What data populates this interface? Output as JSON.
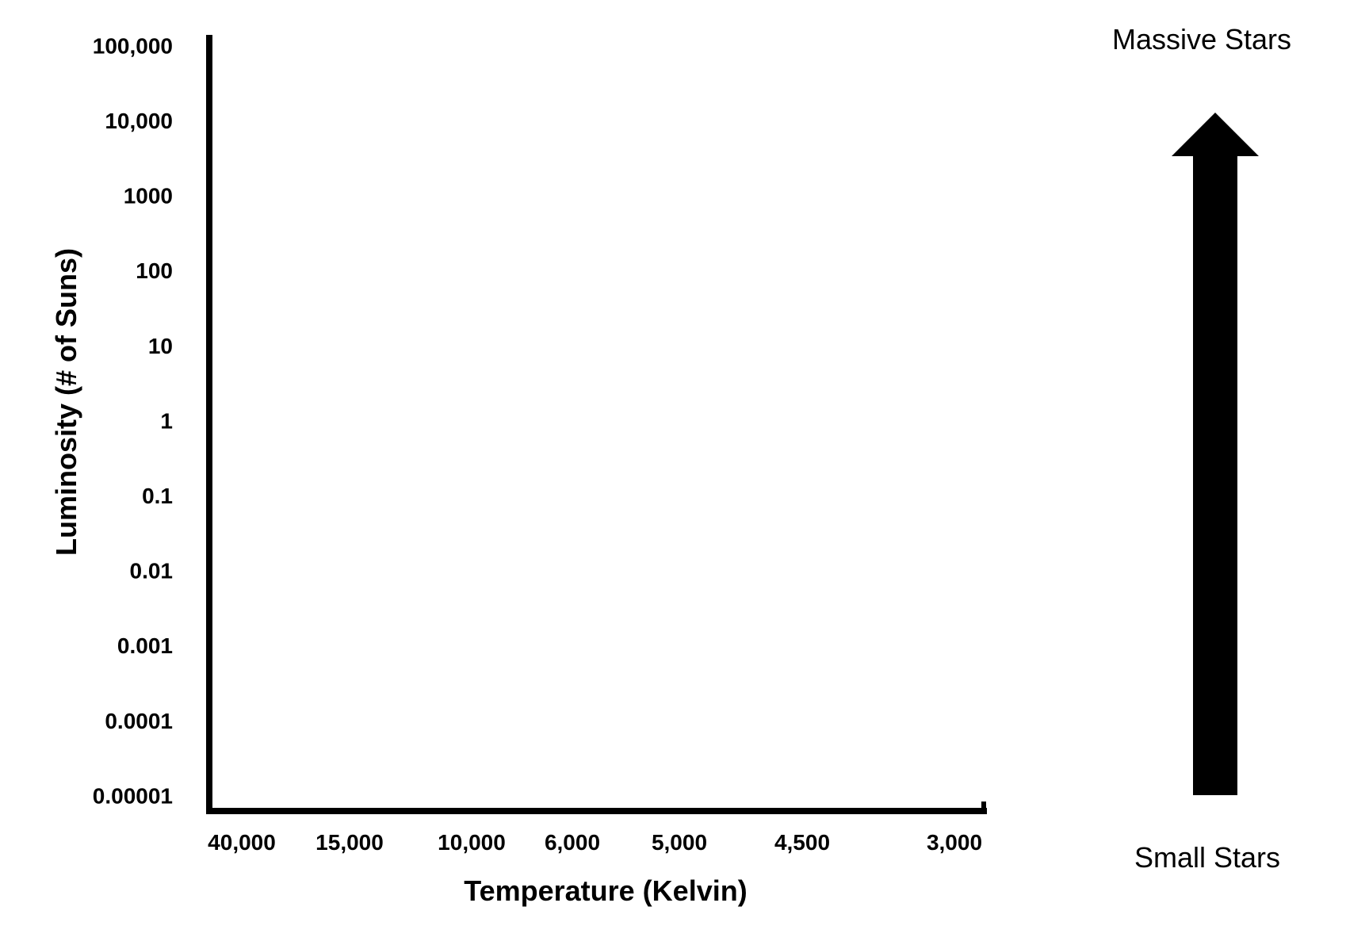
{
  "chart_data": {
    "type": "scatter",
    "title": "",
    "xlabel": "Temperature (Kelvin)",
    "ylabel": "Luminosity (# of Suns)",
    "x_ticks": [
      "40,000",
      "15,000",
      "10,000",
      "6,000",
      "5,000",
      "4,500",
      "3,000"
    ],
    "y_ticks": [
      "100,000",
      "10,000",
      "1000",
      "100",
      "10",
      "1",
      "0.1",
      "0.01",
      "0.001",
      "0.0001",
      "0.00001"
    ],
    "x_order": "descending",
    "y_scale": "log",
    "ylim": [
      1e-05,
      100000
    ],
    "series": [],
    "grid": false,
    "legend": "none"
  },
  "annotations": {
    "top_label": "Massive Stars",
    "bottom_label": "Small Stars",
    "arrow_direction": "up"
  },
  "colors": {
    "axis": "#000000",
    "arrow": "#000000",
    "background": "#ffffff"
  }
}
